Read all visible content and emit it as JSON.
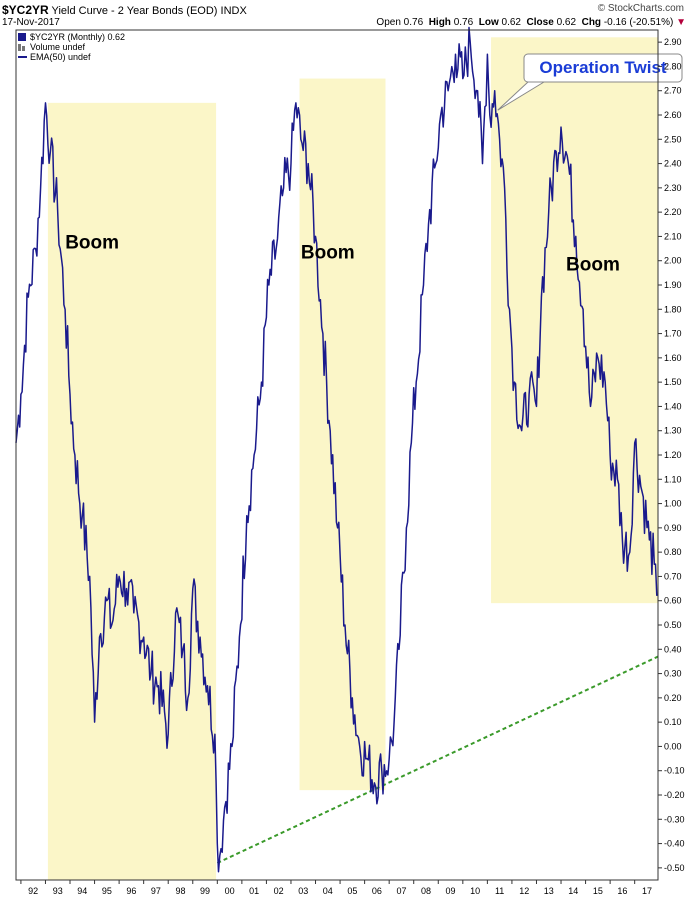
{
  "header": {
    "symbol": "$YC2YR",
    "description": "Yield Curve - 2 Year Bonds (EOD)",
    "exchange": "INDX",
    "date": "17-Nov-2017",
    "brand": "© StockCharts.com",
    "open_label": "Open",
    "open": "0.76",
    "high_label": "High",
    "high": "0.76",
    "low_label": "Low",
    "low": "0.62",
    "close_label": "Close",
    "close": "0.62",
    "chg_label": "Chg",
    "chg": "-0.16 (-20.51%)",
    "chg_arrow": "▼"
  },
  "legend": {
    "main": "$YC2YR (Monthly) 0.62",
    "volume": "Volume undef",
    "ema": "EMA(50) undef"
  },
  "colors": {
    "series": "#1a1a8c",
    "box": "#fbf6c8",
    "trend": "#3a9a2a",
    "callout_text": "#1a3cd6",
    "axis": "#333333"
  },
  "chart_data": {
    "type": "line",
    "title": "$YC2YR Yield Curve - 2 Year Bonds (EOD)",
    "ylim": [
      -0.55,
      2.95
    ],
    "ytick_labels": [
      "2.90",
      "2.80",
      "2.70",
      "2.60",
      "2.50",
      "2.40",
      "2.30",
      "2.20",
      "2.10",
      "2.00",
      "1.90",
      "1.80",
      "1.70",
      "1.60",
      "1.50",
      "1.40",
      "1.30",
      "1.20",
      "1.10",
      "1.00",
      "0.90",
      "0.80",
      "0.70",
      "0.60",
      "0.50",
      "0.40",
      "0.30",
      "0.20",
      "0.10",
      "0.00",
      "-0.10",
      "-0.20",
      "-0.30",
      "-0.40",
      "-0.50"
    ],
    "xlim": [
      1991.8,
      2017.95
    ],
    "xtick_labels": [
      {
        "year": 1992,
        "label": "92"
      },
      {
        "year": 1993,
        "label": "93"
      },
      {
        "year": 1994,
        "label": "94"
      },
      {
        "year": 1995,
        "label": "95"
      },
      {
        "year": 1996,
        "label": "96"
      },
      {
        "year": 1997,
        "label": "97"
      },
      {
        "year": 1998,
        "label": "98"
      },
      {
        "year": 1999,
        "label": "99"
      },
      {
        "year": 2000,
        "label": "00"
      },
      {
        "year": 2001,
        "label": "01"
      },
      {
        "year": 2002,
        "label": "02"
      },
      {
        "year": 2003,
        "label": "03"
      },
      {
        "year": 2004,
        "label": "04"
      },
      {
        "year": 2005,
        "label": "05"
      },
      {
        "year": 2006,
        "label": "06"
      },
      {
        "year": 2007,
        "label": "07"
      },
      {
        "year": 2008,
        "label": "08"
      },
      {
        "year": 2009,
        "label": "09"
      },
      {
        "year": 2010,
        "label": "10"
      },
      {
        "year": 2011,
        "label": "11"
      },
      {
        "year": 2012,
        "label": "12"
      },
      {
        "year": 2013,
        "label": "13"
      },
      {
        "year": 2014,
        "label": "14"
      },
      {
        "year": 2015,
        "label": "15"
      },
      {
        "year": 2016,
        "label": "16"
      },
      {
        "year": 2017,
        "label": "17"
      }
    ],
    "series": [
      {
        "x": [
          1991.8,
          1992.0,
          1992.3,
          1992.6,
          1992.8,
          1993.0,
          1993.2,
          1993.5,
          1993.8,
          1994.0,
          1994.2,
          1994.5,
          1994.8,
          1995.0,
          1995.2,
          1995.5,
          1995.7,
          1996.0,
          1996.3,
          1996.6,
          1997.0,
          1997.3,
          1997.6,
          1998.0,
          1998.3,
          1998.6,
          1998.8,
          1999.0,
          1999.3,
          1999.6,
          1999.9,
          2000.0,
          2000.1,
          2000.3,
          2000.6,
          2000.9,
          2001.2,
          2001.5,
          2001.8,
          2002.1,
          2002.4,
          2002.7,
          2003.0,
          2003.2,
          2003.4,
          2003.7,
          2004.0,
          2004.3,
          2004.6,
          2004.9,
          2005.2,
          2005.5,
          2005.8,
          2006.1,
          2006.4,
          2006.7,
          2007.0,
          2007.2,
          2007.4,
          2007.7,
          2007.9,
          2008.1,
          2008.4,
          2008.6,
          2008.9,
          2009.1,
          2009.4,
          2009.7,
          2010.0,
          2010.3,
          2010.6,
          2010.8,
          2011.0,
          2011.1,
          2011.3,
          2011.5,
          2011.7,
          2011.9,
          2012.1,
          2012.4,
          2012.7,
          2013.0,
          2013.2,
          2013.5,
          2013.8,
          2014.0,
          2014.3,
          2014.6,
          2014.9,
          2015.2,
          2015.5,
          2015.8,
          2016.0,
          2016.3,
          2016.5,
          2016.8,
          2017.0,
          2017.3,
          2017.6,
          2017.8,
          2017.9
        ],
        "values": [
          1.25,
          1.45,
          1.85,
          2.05,
          2.3,
          2.65,
          2.45,
          2.2,
          1.8,
          1.45,
          1.2,
          0.95,
          0.7,
          0.1,
          0.45,
          0.6,
          0.5,
          0.7,
          0.65,
          0.55,
          0.45,
          0.3,
          0.25,
          0.05,
          0.55,
          0.4,
          0.2,
          0.65,
          0.45,
          0.25,
          0.05,
          -0.4,
          -0.45,
          -0.25,
          0.0,
          0.45,
          0.95,
          1.2,
          1.5,
          1.9,
          2.05,
          2.3,
          2.4,
          2.65,
          2.5,
          2.4,
          2.1,
          1.7,
          1.3,
          0.9,
          0.5,
          0.2,
          0.0,
          -0.05,
          -0.15,
          -0.1,
          -0.05,
          0.1,
          0.4,
          0.9,
          1.25,
          1.5,
          1.9,
          2.15,
          2.4,
          2.6,
          2.7,
          2.85,
          2.75,
          2.9,
          2.7,
          2.4,
          2.85,
          2.6,
          2.7,
          2.5,
          2.3,
          1.8,
          1.5,
          1.3,
          1.45,
          1.4,
          1.85,
          2.2,
          2.45,
          2.55,
          2.4,
          2.1,
          1.8,
          1.4,
          1.6,
          1.5,
          1.2,
          1.1,
          0.85,
          0.8,
          1.25,
          1.05,
          0.85,
          0.75,
          0.62
        ]
      }
    ],
    "shaded_regions": [
      {
        "x0": 1993.1,
        "x1": 1999.95,
        "y0": -0.55,
        "y1": 2.65
      },
      {
        "x0": 2003.35,
        "x1": 2006.85,
        "y0": -0.18,
        "y1": 2.75
      },
      {
        "x0": 2011.15,
        "x1": 2017.97,
        "y0": 0.59,
        "y1": 2.92
      }
    ],
    "trendline": {
      "x0": 2000.0,
      "y0": -0.48,
      "x1": 2017.95,
      "y1": 0.37
    },
    "annotations": [
      {
        "text": "Boom",
        "x": 1994.9,
        "y": 2.05
      },
      {
        "text": "Boom",
        "x": 2004.5,
        "y": 2.01
      },
      {
        "text": "Boom",
        "x": 2015.3,
        "y": 1.96
      }
    ],
    "callout": {
      "text": "Operation Twist",
      "x": 2011.3,
      "y": 2.62
    }
  }
}
